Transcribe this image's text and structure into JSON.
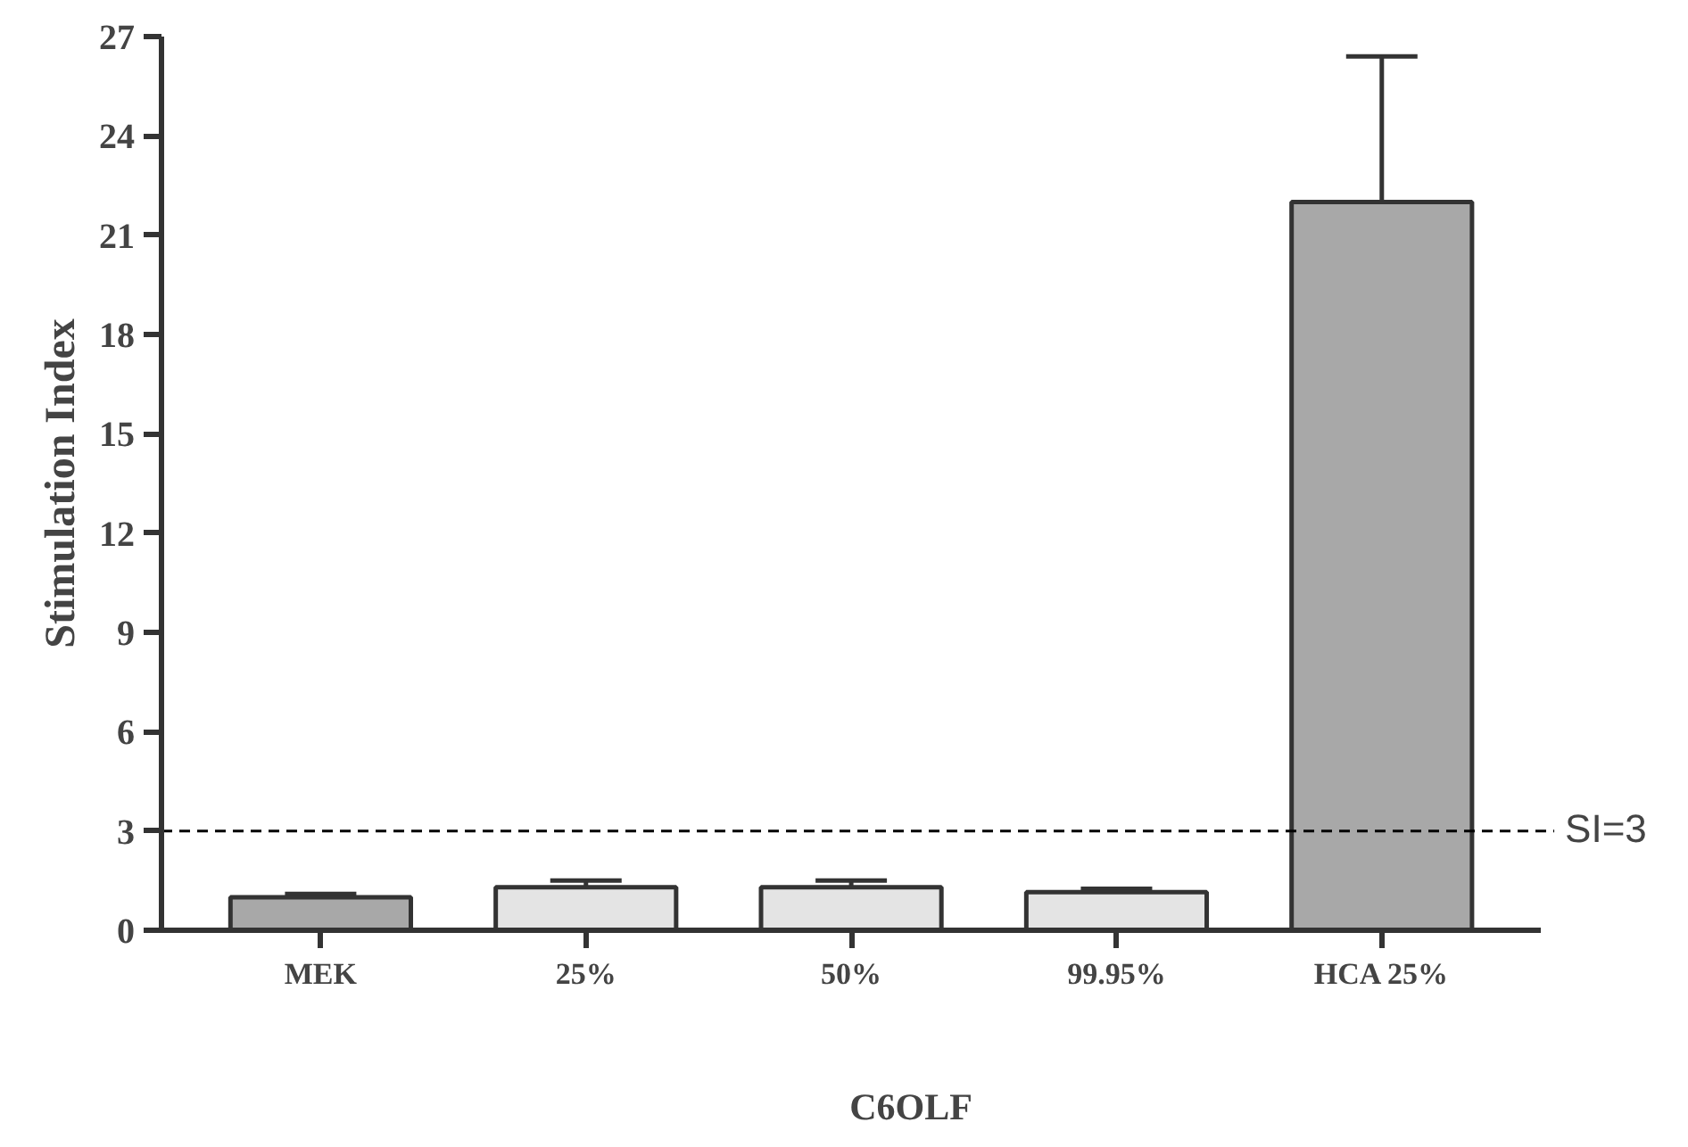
{
  "chart_data": {
    "type": "bar",
    "xlabel": "C6OLF",
    "ylabel": "Stimulation Index",
    "categories": [
      "MEK",
      "25%",
      "50%",
      "99.95%",
      "HCA 25%"
    ],
    "values": [
      1.0,
      1.3,
      1.3,
      1.15,
      22.0
    ],
    "errors": [
      0.1,
      0.2,
      0.2,
      0.1,
      4.4
    ],
    "colors": [
      "#a8a8a8",
      "#e4e4e4",
      "#e4e4e4",
      "#e4e4e4",
      "#a8a8a8"
    ],
    "ylim": [
      0,
      27
    ],
    "yticks": [
      0,
      3,
      6,
      9,
      12,
      15,
      18,
      21,
      24,
      27
    ],
    "ref_lines": [
      {
        "axis": "y",
        "value": 3,
        "label": "SI=3",
        "color": "#000000",
        "line_style": "dashed"
      }
    ],
    "grid": false
  }
}
